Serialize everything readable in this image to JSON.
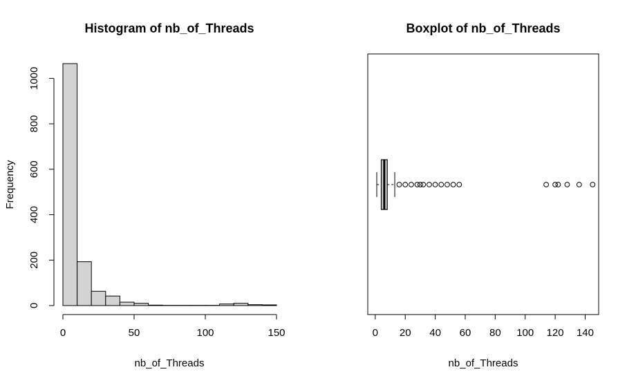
{
  "chart_data": [
    {
      "type": "bar",
      "title": "Histogram of nb_of_Threads",
      "xlabel": "nb_of_Threads",
      "ylabel": "Frequency",
      "bin_edges": [
        0,
        10,
        20,
        30,
        40,
        50,
        60,
        70,
        80,
        90,
        100,
        110,
        120,
        130,
        140,
        150
      ],
      "values": [
        1065,
        193,
        63,
        42,
        15,
        10,
        2,
        1,
        1,
        1,
        1,
        7,
        10,
        4,
        3
      ],
      "xlim": [
        0,
        150
      ],
      "ylim": [
        0,
        1065
      ],
      "x_ticks": [
        0,
        50,
        100,
        150
      ],
      "y_ticks": [
        0,
        200,
        400,
        600,
        800,
        1000
      ]
    },
    {
      "type": "boxplot",
      "title": "Boxplot of nb_of_Threads",
      "xlabel": "nb_of_Threads",
      "orientation": "horizontal",
      "stats": {
        "whisker_low": 1,
        "q1": 4,
        "median": 6,
        "q3": 8,
        "whisker_high": 13
      },
      "outliers": [
        16,
        20,
        24,
        28,
        30,
        32,
        36,
        40,
        44,
        48,
        52,
        56,
        114,
        120,
        122,
        128,
        136,
        145
      ],
      "xlim": [
        -5,
        149
      ],
      "x_ticks": [
        0,
        20,
        40,
        60,
        80,
        100,
        120,
        140
      ]
    }
  ]
}
